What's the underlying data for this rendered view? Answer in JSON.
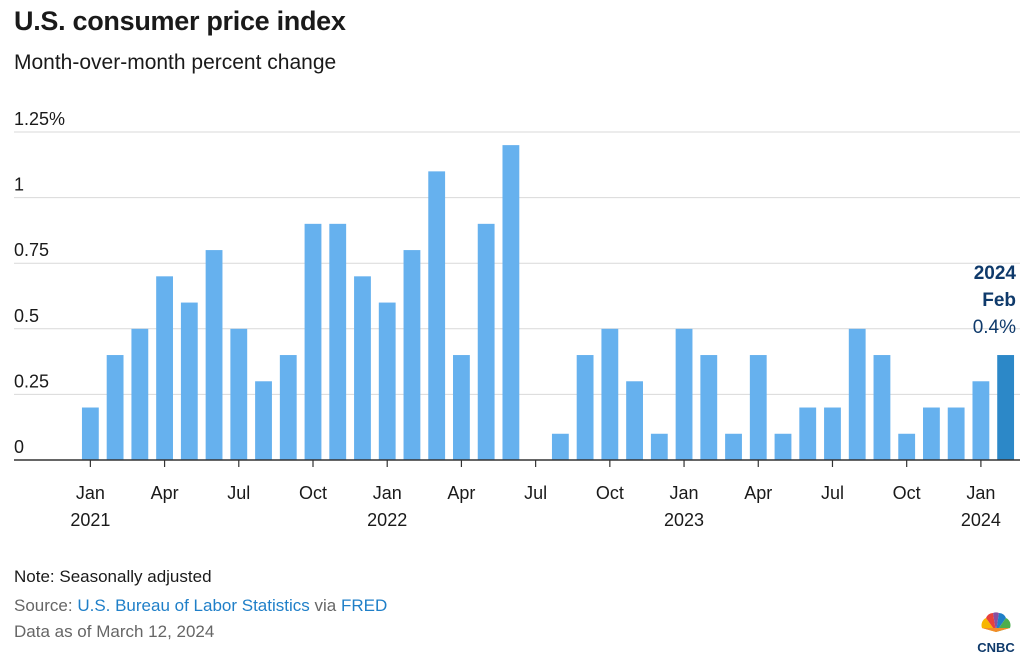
{
  "title": "U.S. consumer price index",
  "subtitle": "Month-over-month percent change",
  "chart_data": {
    "type": "bar",
    "title": "U.S. consumer price index",
    "subtitle": "Month-over-month percent change",
    "ylim": [
      0,
      1.25
    ],
    "y_ticks": [
      0,
      0.25,
      0.5,
      0.75,
      1,
      1.25
    ],
    "y_tick_labels": [
      "0",
      "0.25",
      "0.5",
      "0.75",
      "1",
      "1.25%"
    ],
    "grid": true,
    "categories": [
      "Jan 2021",
      "Feb 2021",
      "Mar 2021",
      "Apr 2021",
      "May 2021",
      "Jun 2021",
      "Jul 2021",
      "Aug 2021",
      "Sep 2021",
      "Oct 2021",
      "Nov 2021",
      "Dec 2021",
      "Jan 2022",
      "Feb 2022",
      "Mar 2022",
      "Apr 2022",
      "May 2022",
      "Jun 2022",
      "Jul 2022",
      "Aug 2022",
      "Sep 2022",
      "Oct 2022",
      "Nov 2022",
      "Dec 2022",
      "Jan 2023",
      "Feb 2023",
      "Mar 2023",
      "Apr 2023",
      "May 2023",
      "Jun 2023",
      "Jul 2023",
      "Aug 2023",
      "Sep 2023",
      "Oct 2023",
      "Nov 2023",
      "Dec 2023",
      "Jan 2024",
      "Feb 2024"
    ],
    "values": [
      0.2,
      0.4,
      0.5,
      0.7,
      0.6,
      0.8,
      0.5,
      0.3,
      0.4,
      0.9,
      0.9,
      0.7,
      0.6,
      0.8,
      1.1,
      0.4,
      0.9,
      1.2,
      0.0,
      0.1,
      0.4,
      0.5,
      0.3,
      0.1,
      0.5,
      0.4,
      0.1,
      0.4,
      0.1,
      0.2,
      0.2,
      0.5,
      0.4,
      0.1,
      0.2,
      0.2,
      0.3,
      0.4
    ],
    "x_tick_labels": [
      {
        "index": 0,
        "month": "Jan",
        "year": "2021"
      },
      {
        "index": 3,
        "month": "Apr",
        "year": ""
      },
      {
        "index": 6,
        "month": "Jul",
        "year": ""
      },
      {
        "index": 9,
        "month": "Oct",
        "year": ""
      },
      {
        "index": 12,
        "month": "Jan",
        "year": "2022"
      },
      {
        "index": 15,
        "month": "Apr",
        "year": ""
      },
      {
        "index": 18,
        "month": "Jul",
        "year": ""
      },
      {
        "index": 21,
        "month": "Oct",
        "year": ""
      },
      {
        "index": 24,
        "month": "Jan",
        "year": "2023"
      },
      {
        "index": 27,
        "month": "Apr",
        "year": ""
      },
      {
        "index": 30,
        "month": "Jul",
        "year": ""
      },
      {
        "index": 33,
        "month": "Oct",
        "year": ""
      },
      {
        "index": 36,
        "month": "Jan",
        "year": "2024"
      }
    ],
    "highlight": {
      "index": 37,
      "year": "2024",
      "month": "Feb",
      "value_label": "0.4%"
    },
    "colors": {
      "bar": "#66b1ee",
      "highlight": "#2c88c8",
      "highlight_label": "#0f3a6b",
      "grid": "#d9d9d9",
      "axis": "#333333"
    }
  },
  "footer": {
    "note": "Note: Seasonally adjusted",
    "source_prefix": "Source: ",
    "source_bls": "U.S. Bureau of Labor Statistics",
    "source_via": " via ",
    "source_fred": "FRED",
    "date": "Data as of March 12, 2024"
  },
  "logo": {
    "text": "CNBC",
    "icon": "peacock-icon"
  }
}
